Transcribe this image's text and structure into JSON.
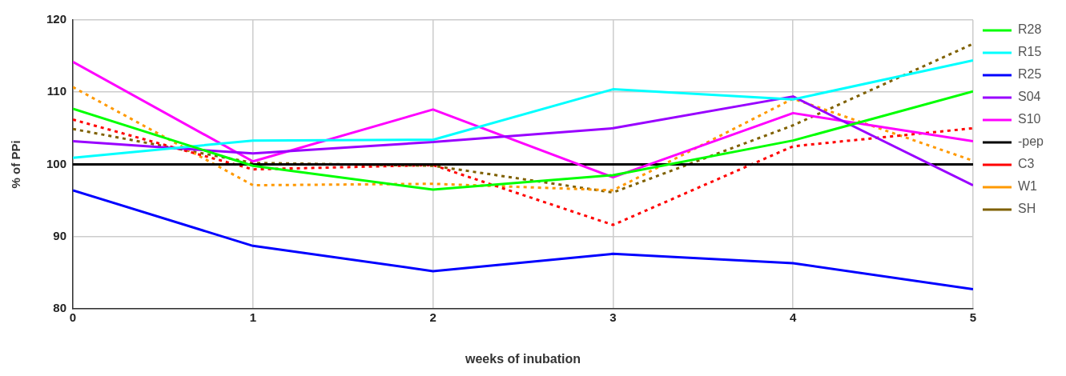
{
  "chart_data": {
    "type": "line",
    "xlabel": "weeks of inubation",
    "ylabel": "% of PPi",
    "x": [
      0,
      1,
      2,
      3,
      4,
      5
    ],
    "xlim": [
      0,
      5
    ],
    "xticks": [
      0,
      1,
      2,
      3,
      4,
      5
    ],
    "ylim": [
      80,
      120
    ],
    "yticks": [
      80,
      90,
      100,
      110,
      120
    ],
    "grid": true,
    "legend": "right",
    "marker": "none",
    "series": [
      {
        "name": "R28",
        "color": "#00ff00",
        "line_style": "solid",
        "values": [
          107.7,
          99.8,
          96.5,
          98.5,
          103.3,
          110.1
        ]
      },
      {
        "name": "R15",
        "color": "#00ffff",
        "line_style": "solid",
        "values": [
          100.9,
          103.3,
          103.4,
          110.4,
          109.0,
          114.4
        ]
      },
      {
        "name": "R25",
        "color": "#0000ff",
        "line_style": "solid",
        "values": [
          96.4,
          88.7,
          85.2,
          87.6,
          86.3,
          82.7
        ]
      },
      {
        "name": "S04",
        "color": "#9900ff",
        "line_style": "solid",
        "values": [
          103.2,
          101.5,
          103.1,
          105.0,
          109.4,
          97.1
        ]
      },
      {
        "name": "S10",
        "color": "#ff00ff",
        "line_style": "solid",
        "values": [
          114.2,
          100.4,
          107.6,
          98.2,
          107.1,
          103.2
        ]
      },
      {
        "name": "-pep",
        "color": "#000000",
        "line_style": "solid",
        "values": [
          100,
          100,
          100,
          100,
          100,
          100
        ]
      },
      {
        "name": "C3",
        "color": "#ff0000",
        "line_style": "dotted",
        "values": [
          106.2,
          99.3,
          99.9,
          91.6,
          102.5,
          105.0
        ]
      },
      {
        "name": "W1",
        "color": "#ff9900",
        "line_style": "dotted",
        "values": [
          110.7,
          97.1,
          97.3,
          96.4,
          109.1,
          100.5
        ]
      },
      {
        "name": "SH",
        "color": "#7f6000",
        "line_style": "dotted",
        "values": [
          104.9,
          100.2,
          99.8,
          96.1,
          105.4,
          116.7
        ]
      }
    ]
  }
}
